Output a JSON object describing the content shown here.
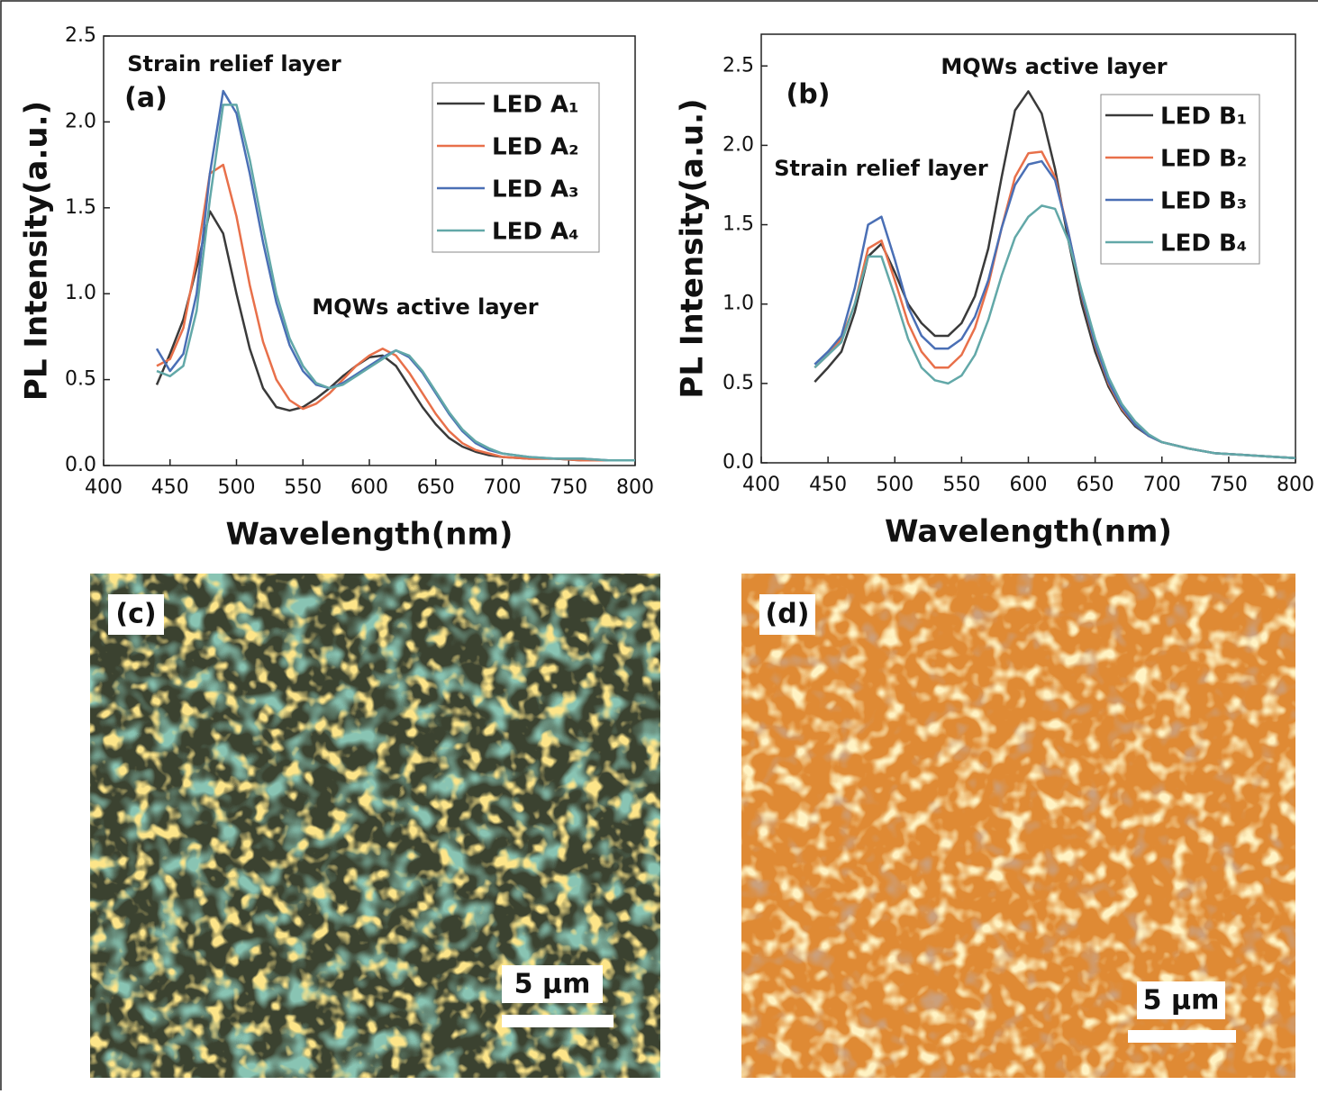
{
  "chart_data": [
    {
      "type": "line",
      "panel_label": "(a)",
      "annotations": [
        "Strain relief layer",
        "MQWs active layer"
      ],
      "x_label": "Wavelength(nm)",
      "y_label": "PL Intensity(a.u.)",
      "xlim": [
        400,
        800
      ],
      "xticks": [
        400,
        450,
        500,
        550,
        600,
        650,
        700,
        750,
        800
      ],
      "ylim": [
        0,
        2.5
      ],
      "yticks": [
        {
          "value": 0,
          "label": "0.0"
        },
        0.5,
        {
          "value": 1,
          "label": "1.0"
        },
        1.5,
        {
          "value": 2,
          "label": "2.0"
        },
        2.5
      ],
      "x": [
        440,
        450,
        460,
        470,
        480,
        490,
        500,
        510,
        520,
        530,
        540,
        550,
        560,
        570,
        580,
        590,
        600,
        610,
        620,
        630,
        640,
        650,
        660,
        670,
        680,
        690,
        700,
        720,
        740,
        760,
        780,
        800
      ],
      "series": [
        {
          "name": "LED A₁",
          "color": "#3a3a3a",
          "values": [
            0.47,
            0.65,
            0.85,
            1.15,
            1.48,
            1.35,
            1.0,
            0.68,
            0.45,
            0.34,
            0.32,
            0.34,
            0.39,
            0.45,
            0.52,
            0.58,
            0.63,
            0.64,
            0.58,
            0.46,
            0.34,
            0.24,
            0.16,
            0.11,
            0.08,
            0.06,
            0.05,
            0.04,
            0.04,
            0.03,
            0.03,
            0.03
          ]
        },
        {
          "name": "LED A₂",
          "color": "#e8704a",
          "values": [
            0.58,
            0.62,
            0.8,
            1.2,
            1.7,
            1.75,
            1.45,
            1.05,
            0.72,
            0.5,
            0.38,
            0.33,
            0.36,
            0.42,
            0.5,
            0.58,
            0.64,
            0.68,
            0.64,
            0.54,
            0.42,
            0.3,
            0.2,
            0.13,
            0.09,
            0.07,
            0.05,
            0.04,
            0.04,
            0.03,
            0.03,
            0.03
          ]
        },
        {
          "name": "LED A₃",
          "color": "#4a6fb5",
          "values": [
            0.68,
            0.55,
            0.65,
            1.0,
            1.7,
            2.18,
            2.05,
            1.7,
            1.3,
            0.95,
            0.7,
            0.55,
            0.47,
            0.45,
            0.48,
            0.53,
            0.58,
            0.63,
            0.67,
            0.63,
            0.54,
            0.42,
            0.3,
            0.2,
            0.13,
            0.09,
            0.07,
            0.05,
            0.04,
            0.04,
            0.03,
            0.03
          ]
        },
        {
          "name": "LED A₄",
          "color": "#62a8a8",
          "values": [
            0.55,
            0.52,
            0.58,
            0.9,
            1.55,
            2.1,
            2.1,
            1.78,
            1.38,
            1.0,
            0.74,
            0.58,
            0.48,
            0.45,
            0.47,
            0.52,
            0.57,
            0.62,
            0.67,
            0.64,
            0.55,
            0.43,
            0.31,
            0.21,
            0.14,
            0.1,
            0.07,
            0.05,
            0.04,
            0.04,
            0.03,
            0.03
          ]
        }
      ]
    },
    {
      "type": "line",
      "panel_label": "(b)",
      "annotations": [
        "MQWs active layer",
        "Strain relief layer"
      ],
      "x_label": "Wavelength(nm)",
      "y_label": "PL Intensity(a.u.)",
      "xlim": [
        400,
        800
      ],
      "xticks": [
        400,
        450,
        500,
        550,
        600,
        650,
        700,
        750,
        800
      ],
      "ylim": [
        0,
        2.7
      ],
      "yticks": [
        {
          "value": 0,
          "label": "0.0"
        },
        0.5,
        {
          "value": 1,
          "label": "1.0"
        },
        1.5,
        {
          "value": 2,
          "label": "2.0"
        },
        2.5
      ],
      "x": [
        440,
        450,
        460,
        470,
        480,
        490,
        500,
        510,
        520,
        530,
        540,
        550,
        560,
        570,
        580,
        590,
        600,
        610,
        620,
        630,
        640,
        650,
        660,
        670,
        680,
        690,
        700,
        720,
        740,
        760,
        780,
        800
      ],
      "series": [
        {
          "name": "LED B₁",
          "color": "#3a3a3a",
          "values": [
            0.51,
            0.6,
            0.7,
            0.95,
            1.3,
            1.38,
            1.2,
            1.0,
            0.88,
            0.8,
            0.8,
            0.88,
            1.05,
            1.35,
            1.8,
            2.22,
            2.34,
            2.2,
            1.85,
            1.4,
            1.0,
            0.7,
            0.48,
            0.33,
            0.23,
            0.17,
            0.13,
            0.09,
            0.06,
            0.05,
            0.04,
            0.03
          ]
        },
        {
          "name": "LED B₂",
          "color": "#e8704a",
          "values": [
            0.6,
            0.68,
            0.78,
            1.0,
            1.35,
            1.4,
            1.15,
            0.88,
            0.7,
            0.6,
            0.6,
            0.68,
            0.85,
            1.12,
            1.48,
            1.8,
            1.95,
            1.96,
            1.8,
            1.45,
            1.05,
            0.74,
            0.5,
            0.34,
            0.24,
            0.17,
            0.13,
            0.09,
            0.06,
            0.05,
            0.04,
            0.03
          ]
        },
        {
          "name": "LED B₃",
          "color": "#4a6fb5",
          "values": [
            0.62,
            0.7,
            0.8,
            1.1,
            1.5,
            1.55,
            1.28,
            0.98,
            0.8,
            0.72,
            0.72,
            0.78,
            0.92,
            1.15,
            1.48,
            1.75,
            1.88,
            1.9,
            1.78,
            1.45,
            1.06,
            0.75,
            0.51,
            0.35,
            0.24,
            0.17,
            0.13,
            0.09,
            0.06,
            0.05,
            0.04,
            0.03
          ]
        },
        {
          "name": "LED B₄",
          "color": "#62a8a8",
          "values": [
            0.6,
            0.68,
            0.76,
            1.0,
            1.3,
            1.3,
            1.05,
            0.78,
            0.6,
            0.52,
            0.5,
            0.55,
            0.68,
            0.9,
            1.18,
            1.42,
            1.55,
            1.62,
            1.6,
            1.4,
            1.08,
            0.78,
            0.54,
            0.37,
            0.26,
            0.18,
            0.13,
            0.09,
            0.06,
            0.05,
            0.04,
            0.03
          ]
        }
      ]
    }
  ],
  "images": [
    {
      "label": "(c)",
      "scale_bar": "5 μm"
    },
    {
      "label": "(d)",
      "scale_bar": "5 μm"
    }
  ]
}
